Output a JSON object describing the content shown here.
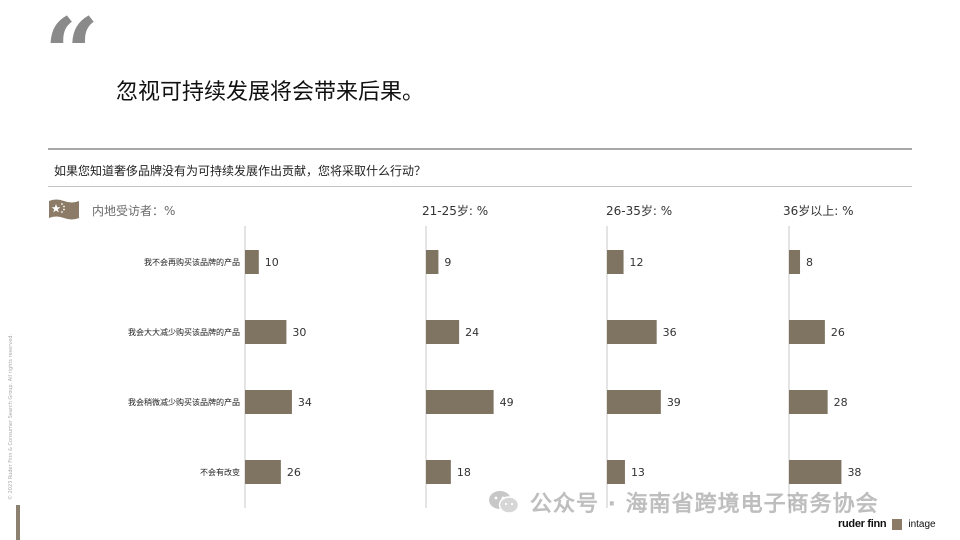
{
  "slide": {
    "quote_mark": "“",
    "title": "忽视可持续发展将会带来后果。",
    "question": "如果您知道奢侈品牌没有为可持续发展作出贡献，您将采取什么行动？",
    "copyright": "© 2023 Ruder Finn & Consumer Search Group. All rights reserved.",
    "watermark": "公众号 · 海南省跨境电子商务协会",
    "watermark_icon": "wechat-icon",
    "logos": {
      "ruderfinn": "ruder finn",
      "intage": "intage"
    }
  },
  "colors": {
    "bar": "#7f7362",
    "axis": "#c9c9c9",
    "label": "#222222",
    "value": "#333333",
    "flag": "#8c7b66"
  },
  "chart_data": {
    "type": "bar",
    "orientation": "horizontal",
    "categories": [
      "我不会再购买该品牌的产品",
      "我会大大减少购买该品牌的产品",
      "我会稍微减少购买该品牌的产品",
      "不会有改变"
    ],
    "panels": [
      {
        "title": "内地受访者：%",
        "values": [
          10,
          30,
          34,
          26
        ]
      },
      {
        "title": "21-25岁: %",
        "values": [
          9,
          24,
          49,
          18
        ]
      },
      {
        "title": "26-35岁: %",
        "values": [
          12,
          36,
          39,
          13
        ]
      },
      {
        "title": "36岁以上: %",
        "values": [
          8,
          26,
          28,
          38
        ]
      }
    ],
    "xlim": [
      0,
      100
    ],
    "grid": false,
    "legend": "none"
  }
}
